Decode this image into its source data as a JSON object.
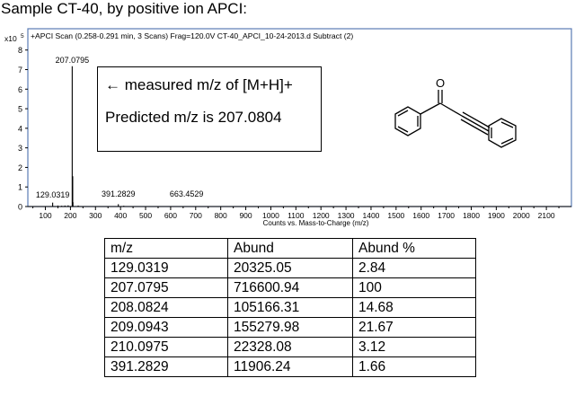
{
  "caption": "Sample CT-40, by positive ion APCI:",
  "chart_data": {
    "type": "bar",
    "title": "+APCI Scan (0.258-0.291 min, 3 Scans) Frag=120.0V CT-40_APCI_10-24-2013.d  Subtract (2)",
    "xlabel": "Counts vs. Mass-to-Charge (m/z)",
    "y_multiplier": "x10",
    "y_exponent": "5",
    "xlim": [
      30,
      2200
    ],
    "ylim": [
      0,
      8.4
    ],
    "x_ticks": [
      100,
      200,
      300,
      400,
      500,
      600,
      700,
      800,
      900,
      1000,
      1100,
      1200,
      1300,
      1400,
      1500,
      1600,
      1700,
      1800,
      1900,
      2000,
      2100
    ],
    "y_ticks": [
      0,
      1,
      2,
      3,
      4,
      5,
      6,
      7,
      8
    ],
    "peaks": [
      {
        "mz": 129.0319,
        "intensity": 0.2
      },
      {
        "mz": 150.0,
        "intensity": 0.05
      },
      {
        "mz": 165.0,
        "intensity": 0.04
      },
      {
        "mz": 178.0,
        "intensity": 0.05
      },
      {
        "mz": 191.0,
        "intensity": 0.06
      },
      {
        "mz": 207.0795,
        "intensity": 7.17
      },
      {
        "mz": 208.0824,
        "intensity": 1.05
      },
      {
        "mz": 209.0943,
        "intensity": 1.55
      },
      {
        "mz": 210.0975,
        "intensity": 0.22
      },
      {
        "mz": 231.0,
        "intensity": 0.05
      },
      {
        "mz": 391.2829,
        "intensity": 0.12
      },
      {
        "mz": 413.0,
        "intensity": 0.04
      },
      {
        "mz": 663.4529,
        "intensity": 0.02
      }
    ],
    "peak_labels": [
      {
        "mz": 207.0795,
        "text": "207.0795"
      },
      {
        "mz": 129.0319,
        "text": "129.0319"
      },
      {
        "mz": 391.2829,
        "text": "391.2829"
      },
      {
        "mz": 663.4529,
        "text": "663.4529"
      }
    ]
  },
  "callout": {
    "arrow": "←",
    "line1": "measured m/z of [M+H]+",
    "line2": "Predicted m/z is 207.0804"
  },
  "table": {
    "headers": [
      "m/z",
      "Abund",
      "Abund %"
    ],
    "rows": [
      [
        "129.0319",
        "20325.05",
        "2.84"
      ],
      [
        "207.0795",
        "716600.94",
        "100"
      ],
      [
        "208.0824",
        "105166.31",
        "14.68"
      ],
      [
        "209.0943",
        "155279.98",
        "21.67"
      ],
      [
        "210.0975",
        "22328.08",
        "3.12"
      ],
      [
        "391.2829",
        "11906.24",
        "1.66"
      ]
    ]
  }
}
